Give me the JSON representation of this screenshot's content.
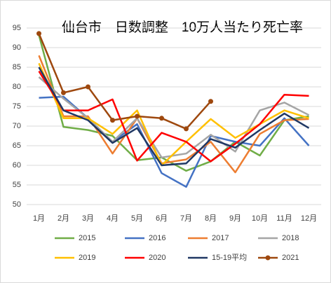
{
  "chart_data": {
    "type": "line",
    "title": "仙台市　日数調整　10万人当たり死亡率",
    "categories": [
      "1月",
      "2月",
      "3月",
      "4月",
      "5月",
      "6月",
      "7月",
      "8月",
      "9月",
      "10月",
      "11月",
      "12月"
    ],
    "ylim": [
      50,
      95
    ],
    "yticks": [
      50,
      55,
      60,
      65,
      70,
      75,
      80,
      85,
      90,
      95
    ],
    "grid": true,
    "legend": "bottom",
    "series": [
      {
        "name": "2015",
        "color": "#70ad47",
        "values": [
          93.2,
          69.8,
          69,
          67.5,
          61.3,
          62,
          58.6,
          61,
          66,
          62.5,
          71.5,
          72.5
        ]
      },
      {
        "name": "2016",
        "color": "#4472c4",
        "values": [
          77.2,
          77.5,
          72,
          66,
          70.5,
          58,
          54.5,
          67.5,
          66,
          65,
          72,
          65
        ]
      },
      {
        "name": "2017",
        "color": "#ed7d31",
        "values": [
          88,
          72.5,
          72.5,
          63,
          72,
          60.5,
          61.5,
          66,
          58.2,
          68,
          71.5,
          71.8
        ]
      },
      {
        "name": "2018",
        "color": "#a5a5a5",
        "values": [
          82.5,
          77,
          72,
          66,
          72,
          62,
          63,
          67.8,
          63.5,
          74,
          76,
          72.8
        ]
      },
      {
        "name": "2019",
        "color": "#ffc000",
        "values": [
          86,
          72,
          72,
          68,
          74,
          60,
          66,
          71.8,
          67,
          70.5,
          74,
          72
        ]
      },
      {
        "name": "2020",
        "color": "#ff0000",
        "values": [
          84,
          74,
          74,
          76.8,
          61.2,
          68.3,
          66,
          61,
          65.5,
          70.5,
          78,
          77.7
        ]
      },
      {
        "name": "15-19平均",
        "color": "#203864",
        "values": [
          85,
          74,
          71.5,
          65.7,
          69.5,
          60,
          60.5,
          66.7,
          64.5,
          69,
          73.2,
          69.5
        ]
      },
      {
        "name": "2021",
        "color": "#9e480e",
        "markers": true,
        "values": [
          93.6,
          78.5,
          80,
          71.5,
          72.5,
          72,
          69.3,
          76.3,
          null,
          null,
          null,
          null
        ]
      }
    ]
  }
}
